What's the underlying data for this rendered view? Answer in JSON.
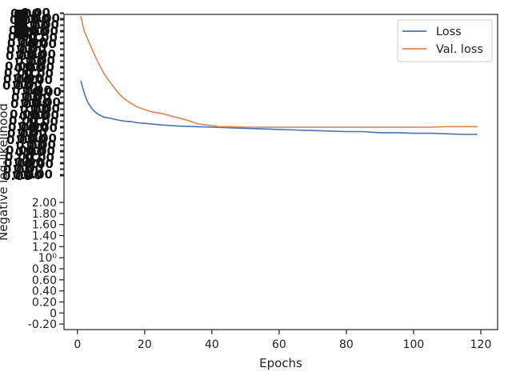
{
  "chart_data": {
    "type": "line",
    "title": "",
    "xlabel": "Epochs",
    "ylabel": "Negative log-likelihood",
    "xlim": [
      -4,
      125
    ],
    "xticks": [
      0,
      20,
      40,
      60,
      80,
      100,
      120
    ],
    "ylim": [
      -0.3,
      5.4
    ],
    "yticks": [
      {
        "value": -0.2,
        "label": "-0.20"
      },
      {
        "value": 0.0,
        "label": "0"
      },
      {
        "value": 0.2,
        "label": "0.20"
      },
      {
        "value": 0.4,
        "label": "0.40"
      },
      {
        "value": 0.6,
        "label": "0.60"
      },
      {
        "value": 0.8,
        "label": "0.80"
      },
      {
        "value": 1.0,
        "label": "10⁰"
      },
      {
        "value": 1.2,
        "label": "1.20"
      },
      {
        "value": 1.4,
        "label": "1.40"
      },
      {
        "value": 1.6,
        "label": "1.60"
      },
      {
        "value": 1.8,
        "label": "1.80"
      },
      {
        "value": 2.0,
        "label": "2.00"
      }
    ],
    "grid": false,
    "legend": "top-right",
    "series": [
      {
        "name": "Loss",
        "color": "#4c72b0",
        "x": [
          1,
          2,
          3,
          4,
          5,
          6,
          7,
          8,
          10,
          12,
          14,
          16,
          18,
          20,
          25,
          30,
          35,
          40,
          45,
          50,
          55,
          60,
          65,
          70,
          75,
          80,
          85,
          90,
          95,
          100,
          105,
          110,
          115,
          119
        ],
        "y": [
          4.2,
          3.98,
          3.82,
          3.72,
          3.65,
          3.6,
          3.57,
          3.54,
          3.52,
          3.49,
          3.47,
          3.46,
          3.44,
          3.43,
          3.4,
          3.38,
          3.37,
          3.36,
          3.35,
          3.34,
          3.33,
          3.32,
          3.31,
          3.3,
          3.29,
          3.28,
          3.28,
          3.26,
          3.26,
          3.25,
          3.25,
          3.24,
          3.23,
          3.23
        ]
      },
      {
        "name": "Val. loss",
        "color": "#dd8452",
        "x": [
          1,
          2,
          4,
          6,
          8,
          10,
          12,
          14,
          16,
          18,
          20,
          22,
          25,
          28,
          30,
          33,
          36,
          38,
          40,
          42,
          45,
          50,
          55,
          60,
          65,
          70,
          75,
          80,
          85,
          90,
          95,
          100,
          105,
          110,
          115,
          119
        ],
        "y": [
          5.37,
          5.1,
          4.82,
          4.55,
          4.32,
          4.15,
          3.99,
          3.87,
          3.79,
          3.72,
          3.68,
          3.64,
          3.61,
          3.56,
          3.53,
          3.48,
          3.42,
          3.4,
          3.39,
          3.37,
          3.37,
          3.36,
          3.36,
          3.36,
          3.36,
          3.36,
          3.36,
          3.36,
          3.36,
          3.36,
          3.36,
          3.36,
          3.36,
          3.37,
          3.37,
          3.37
        ]
      }
    ]
  }
}
